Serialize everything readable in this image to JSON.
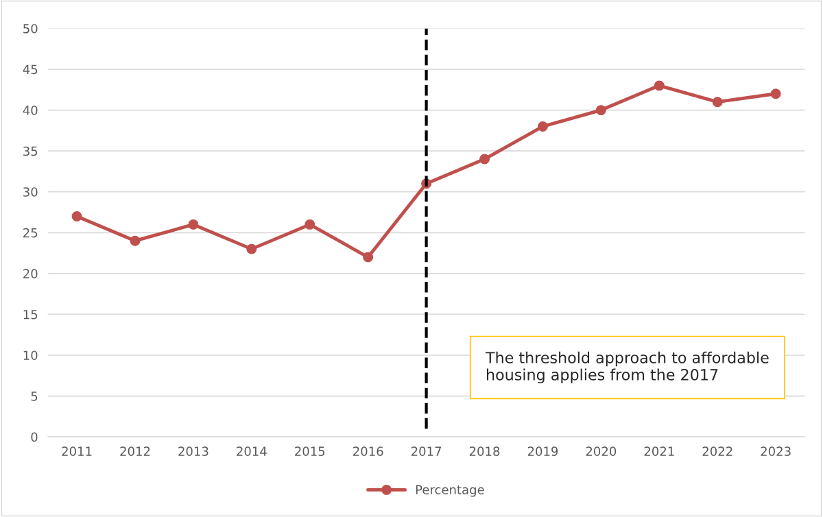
{
  "chart_data": {
    "type": "line",
    "categories": [
      "2011",
      "2012",
      "2013",
      "2014",
      "2015",
      "2016",
      "2017",
      "2018",
      "2019",
      "2020",
      "2021",
      "2022",
      "2023"
    ],
    "series": [
      {
        "name": "Percentage",
        "color": "#c0504d",
        "values": [
          27,
          24,
          26,
          23,
          26,
          22,
          31,
          34,
          38,
          40,
          43,
          41,
          42
        ]
      }
    ],
    "ylim": [
      0,
      50
    ],
    "yticks": [
      0,
      5,
      10,
      15,
      20,
      25,
      30,
      35,
      40,
      45,
      50
    ],
    "grid": "y",
    "legend": "bottom",
    "marker": "circle",
    "line_style": "solid",
    "ref_lines": [
      {
        "axis": "x",
        "value": "2017",
        "color": "#000000",
        "line_style": "dashed"
      }
    ],
    "annotations": [
      "The threshold approach to affordable housing applies from the 2017"
    ]
  }
}
